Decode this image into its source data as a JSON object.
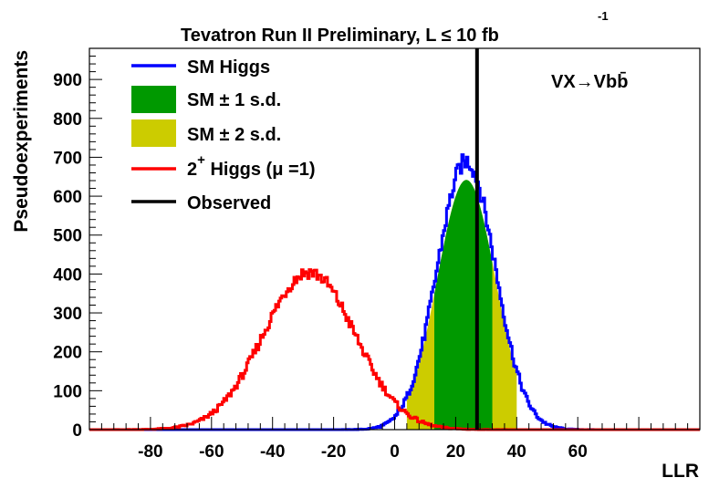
{
  "chart_data": {
    "type": "histogram",
    "title": "Tevatron Run II Preliminary, L  ≤ 10 fb",
    "title_superscript": "-1",
    "xlabel": "LLR",
    "ylabel": "Pseudoexperiments",
    "xlim": [
      -100,
      100
    ],
    "ylim": [
      0,
      980
    ],
    "x_ticks": [
      -80,
      -60,
      -40,
      -20,
      0,
      20,
      40,
      60
    ],
    "y_ticks": [
      0,
      100,
      200,
      300,
      400,
      500,
      600,
      700,
      800,
      900
    ],
    "grid": false,
    "legend_position": "top-left",
    "annotation": "VX→Vbb̄",
    "legend": [
      {
        "label": "SM Higgs",
        "symbol": "line",
        "color": "#0000ff"
      },
      {
        "label": "SM ± 1 s.d.",
        "symbol": "fill",
        "color": "#009900"
      },
      {
        "label": "SM ± 2 s.d.",
        "symbol": "fill",
        "color": "#cccc00"
      },
      {
        "label": "2",
        "label_sup": "+",
        "label_rest": " Higgs (μ =1)",
        "symbol": "line",
        "color": "#ff0000"
      },
      {
        "label": "Observed",
        "symbol": "line",
        "color": "#000000"
      }
    ],
    "series": [
      {
        "name": "SM Higgs",
        "shape": "gaussian",
        "mean": 23.5,
        "sigma": 9.5,
        "peak": 690,
        "color": "#0000ff"
      },
      {
        "name": "2+ Higgs (μ =1)",
        "shape": "gaussian",
        "mean": -28,
        "sigma": 15,
        "peak": 405,
        "color": "#ff0000"
      }
    ],
    "bands": {
      "one_sigma": [
        13,
        32
      ],
      "two_sigma": [
        4,
        40
      ]
    },
    "observed": 27
  }
}
